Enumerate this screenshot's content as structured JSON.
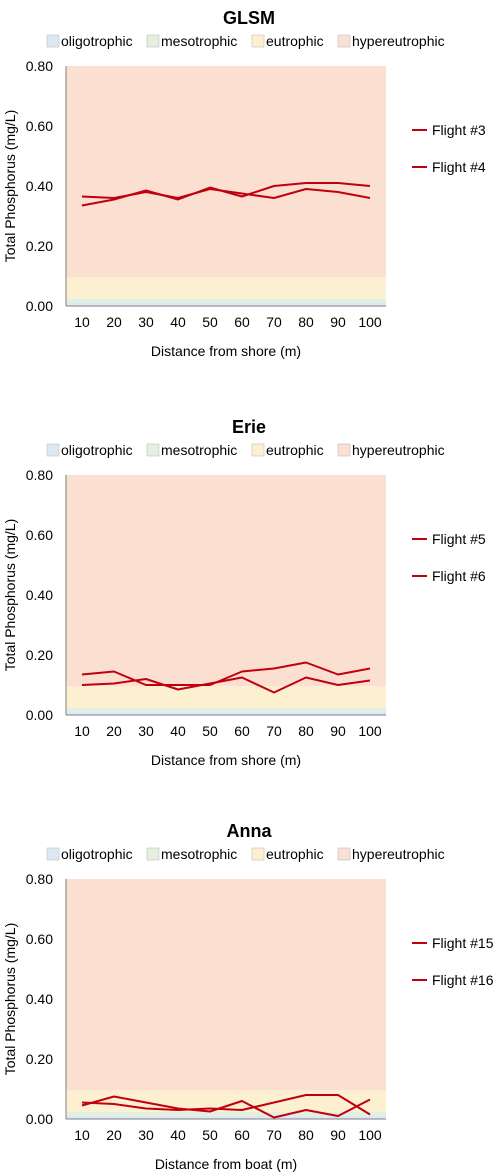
{
  "colors": {
    "oligotrophic": "#dce8f3",
    "mesotrophic": "#e3f0dd",
    "eutrophic": "#fcf0d0",
    "hypereutrophic": "#fbe0d2",
    "line": "#c0000f"
  },
  "chart_data": [
    {
      "type": "line",
      "title": "GLSM",
      "xlabel": "Distance from shore (m)",
      "ylabel": "Total Phosphorus (mg/L)",
      "categories": [
        "10",
        "20",
        "30",
        "40",
        "50",
        "60",
        "70",
        "80",
        "90",
        "100"
      ],
      "ylim": [
        0,
        0.8
      ],
      "yticks": [
        "0.00",
        "0.20",
        "0.40",
        "0.60",
        "0.80"
      ],
      "bands": [
        {
          "name": "oligotrophic",
          "from": 0,
          "to": 0.012
        },
        {
          "name": "mesotrophic",
          "from": 0.012,
          "to": 0.024
        },
        {
          "name": "eutrophic",
          "from": 0.024,
          "to": 0.096
        },
        {
          "name": "hypereutrophic",
          "from": 0.096,
          "to": 0.8
        }
      ],
      "legend": [
        "oligotrophic",
        "mesotrophic",
        "eutrophic",
        "hypereutrophic"
      ],
      "legend_position": "right",
      "series": [
        {
          "name": "Flight #3",
          "values": [
            0.365,
            0.36,
            0.38,
            0.36,
            0.39,
            0.375,
            0.36,
            0.39,
            0.38,
            0.36
          ]
        },
        {
          "name": "Flight #4",
          "values": [
            0.335,
            0.355,
            0.385,
            0.355,
            0.395,
            0.365,
            0.4,
            0.41,
            0.41,
            0.4
          ]
        }
      ]
    },
    {
      "type": "line",
      "title": "Erie",
      "xlabel": "Distance from shore (m)",
      "ylabel": "Total Phosphorus (mg/L)",
      "categories": [
        "10",
        "20",
        "30",
        "40",
        "50",
        "60",
        "70",
        "80",
        "90",
        "100"
      ],
      "ylim": [
        0,
        0.8
      ],
      "yticks": [
        "0.00",
        "0.20",
        "0.40",
        "0.60",
        "0.80"
      ],
      "bands": [
        {
          "name": "oligotrophic",
          "from": 0,
          "to": 0.012
        },
        {
          "name": "mesotrophic",
          "from": 0.012,
          "to": 0.024
        },
        {
          "name": "eutrophic",
          "from": 0.024,
          "to": 0.096
        },
        {
          "name": "hypereutrophic",
          "from": 0.096,
          "to": 0.8
        }
      ],
      "legend": [
        "oligotrophic",
        "mesotrophic",
        "eutrophic",
        "hypereutrophic"
      ],
      "legend_position": "right",
      "series": [
        {
          "name": "Flight #5",
          "values": [
            0.1,
            0.105,
            0.12,
            0.085,
            0.105,
            0.125,
            0.075,
            0.125,
            0.1,
            0.115
          ]
        },
        {
          "name": "Flight #6",
          "values": [
            0.135,
            0.145,
            0.1,
            0.1,
            0.1,
            0.145,
            0.155,
            0.175,
            0.135,
            0.155
          ]
        }
      ]
    },
    {
      "type": "line",
      "title": "Anna",
      "xlabel": "Distance from boat (m)",
      "ylabel": "Total Phosphorus (mg/L)",
      "categories": [
        "10",
        "20",
        "30",
        "40",
        "50",
        "60",
        "70",
        "80",
        "90",
        "100"
      ],
      "ylim": [
        0,
        0.8
      ],
      "yticks": [
        "0.00",
        "0.20",
        "0.40",
        "0.60",
        "0.80"
      ],
      "bands": [
        {
          "name": "oligotrophic",
          "from": 0,
          "to": 0.012
        },
        {
          "name": "mesotrophic",
          "from": 0.012,
          "to": 0.024
        },
        {
          "name": "eutrophic",
          "from": 0.024,
          "to": 0.096
        },
        {
          "name": "hypereutrophic",
          "from": 0.096,
          "to": 0.8
        }
      ],
      "legend": [
        "oligotrophic",
        "mesotrophic",
        "eutrophic",
        "hypereutrophic"
      ],
      "legend_position": "right",
      "series": [
        {
          "name": "Flight #15",
          "values": [
            0.045,
            0.075,
            0.055,
            0.035,
            0.025,
            0.06,
            0.005,
            0.03,
            0.01,
            0.065
          ]
        },
        {
          "name": "Flight #16",
          "values": [
            0.055,
            0.05,
            0.035,
            0.03,
            0.035,
            0.03,
            0.055,
            0.08,
            0.08,
            0.015
          ]
        }
      ]
    }
  ]
}
